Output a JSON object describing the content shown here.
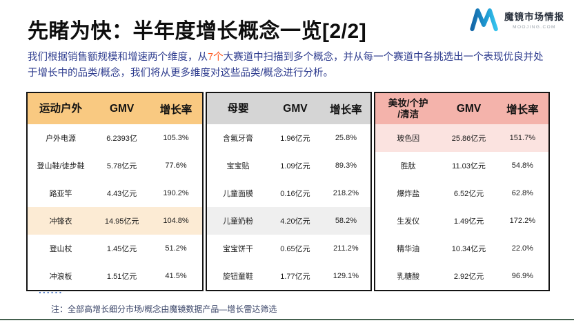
{
  "header": {
    "title": "先睹为快：半年度增长概念一览[2/2]",
    "subtitle": {
      "part1": "我们根据销售额规模和增速两个维度，从",
      "highlight": "7个",
      "part2": "大赛道中扫描到多个概念，并从每一个赛道中各挑选出一个表现优良并处于增长中的品类/概念，我们将从更多维度对这些品类/概念进行分析。"
    },
    "logo": {
      "brand": "魔镜市场情报",
      "domain": "MOOJING.COM",
      "monogram": "M"
    }
  },
  "palette": {
    "subtitle_text": "#2F3D8F",
    "subtitle_highlight": "#FF5B22",
    "dots_blue": "#4472C4",
    "bottom_line": "#44604E"
  },
  "tables": [
    {
      "key": "sports-outdoor",
      "category": "运动户外",
      "columns": {
        "gmv": "GMV",
        "growth": "增长率"
      },
      "colors": {
        "header": "#F9C981",
        "highlight": "#FCEBD4"
      },
      "highlight_row": 3,
      "rows": [
        {
          "name": "户外电源",
          "gmv": "6.2393亿",
          "growth": "105.3%"
        },
        {
          "name": "登山鞋/徒步鞋",
          "gmv": "5.78亿元",
          "growth": "77.6%"
        },
        {
          "name": "路亚竿",
          "gmv": "4.43亿元",
          "growth": "190.2%"
        },
        {
          "name": "冲锋衣",
          "gmv": "14.95亿元",
          "growth": "104.8%"
        },
        {
          "name": "登山杖",
          "gmv": "1.45亿元",
          "growth": "51.2%"
        },
        {
          "name": "冲浪板",
          "gmv": "1.51亿元",
          "growth": "41.5%"
        }
      ]
    },
    {
      "key": "mother-baby",
      "category": "母婴",
      "columns": {
        "gmv": "GMV",
        "growth": "增长率"
      },
      "colors": {
        "header": "#D5D5D5",
        "highlight": "#EFEFEF"
      },
      "highlight_row": 3,
      "rows": [
        {
          "name": "含氟牙膏",
          "gmv": "1.96亿元",
          "growth": "25.8%"
        },
        {
          "name": "宝宝贴",
          "gmv": "1.09亿元",
          "growth": "89.3%"
        },
        {
          "name": "儿童面膜",
          "gmv": "0.16亿元",
          "growth": "218.2%"
        },
        {
          "name": "儿童奶粉",
          "gmv": "4.20亿元",
          "growth": "58.2%"
        },
        {
          "name": "宝宝饼干",
          "gmv": "0.65亿元",
          "growth": "211.2%"
        },
        {
          "name": "旋钮童鞋",
          "gmv": "1.77亿元",
          "growth": "129.1%"
        }
      ]
    },
    {
      "key": "beauty-personal-care",
      "category": "美妆/个护\n/清洁",
      "columns": {
        "gmv": "GMV",
        "growth": "增长率"
      },
      "colors": {
        "header": "#F4B3AB",
        "highlight": "#FBE3E0"
      },
      "highlight_row": 0,
      "rows": [
        {
          "name": "玻色因",
          "gmv": "25.86亿元",
          "growth": "151.7%"
        },
        {
          "name": "胜肽",
          "gmv": "11.03亿元",
          "growth": "54.8%"
        },
        {
          "name": "爆炸盐",
          "gmv": "6.52亿元",
          "growth": "62.8%"
        },
        {
          "name": "生发仪",
          "gmv": "1.49亿元",
          "growth": "172.2%"
        },
        {
          "name": "精华油",
          "gmv": "10.34亿元",
          "growth": "22.0%"
        },
        {
          "name": "乳糖酸",
          "gmv": "2.92亿元",
          "growth": "96.9%"
        }
      ]
    }
  ],
  "footer": {
    "ellipsis": "......",
    "note": "注：全部高增长细分市场/概念由魔镜数据产品—增长雷达筛选"
  }
}
